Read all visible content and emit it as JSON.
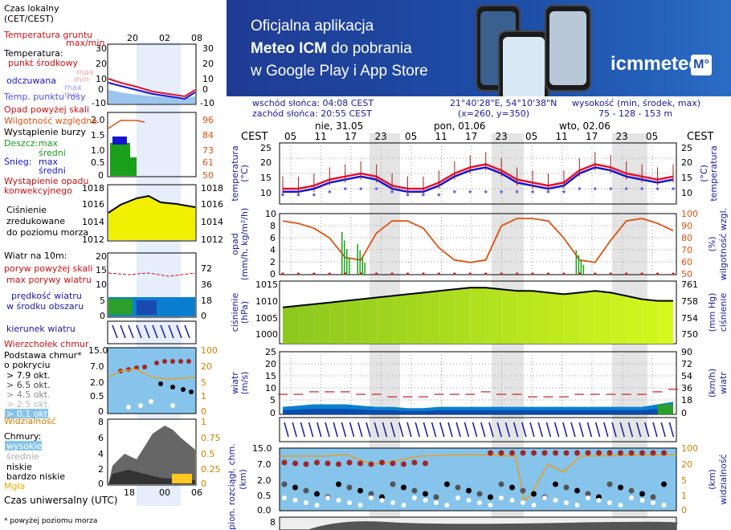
{
  "banner": {
    "line1": "Oficjalna aplikacja",
    "line2_bold": "Meteo ICM",
    "line2_rest": " do pobrania",
    "line3": "w Google Play i App Store",
    "logo_text": "icmmeteo",
    "logo_box": "M°"
  },
  "info": {
    "sunrise": "wschód słońca: 04:08 CEST",
    "sunset": "zachód słońca: 20:55 CEST",
    "coords": "21°40'28\"E, 54°10'38\"N",
    "grid": "(x=260, y=350)",
    "elev_label": "wysokość (min, środek, max)",
    "elev_values": "75 - 128 - 153 m"
  },
  "legend": {
    "tz_top": "Czas lokalny",
    "tz_top2": "(CET/CEST)",
    "top_ticks": [
      "20",
      "02",
      "08"
    ],
    "soil": "Temperatura gruntu",
    "soil2": "max/min",
    "temp": "Temperatura:",
    "temp_mid": "punkt środkowy",
    "temp_max": "max",
    "temp_min": "min",
    "feels": "odczuwana",
    "feels_max": "max",
    "feels_min": "min",
    "dew": "Temp. punktu rosy",
    "temp_ticks": [
      "30",
      "20",
      "10",
      "0",
      "-10"
    ],
    "precip_over": "Opad powyżej skali",
    "humidity": "Wilgotność względna",
    "storm": "Wystąpienie burzy",
    "rain": "Deszcz:",
    "rain_max": "max",
    "rain_mean": "średni",
    "snow": "Śnieg:",
    "snow_max": "max",
    "snow_mean": "średni",
    "conv": "Wystąpienie opadu",
    "conv2": "konwekcyjnego",
    "precip_ticks_l": [
      "2.0",
      "1.5",
      "1.0",
      "0.5",
      "0"
    ],
    "precip_ticks_r": [
      "96",
      "84",
      "73",
      "61",
      "50"
    ],
    "press_ticks": [
      "1018",
      "1016",
      "1014",
      "1012"
    ],
    "pressure": "Ciśnienie",
    "pressure2": "zredukowane",
    "pressure3": "do poziomu morza",
    "wind": "Wiatr na 10m:",
    "gust_over": "poryw powyżej skali",
    "gust_max": "max porywy wiatru",
    "wind_mean": "prędkość wiatru",
    "wind_mean2": "w środku obszaru",
    "wind_ticks_l": [
      "20",
      "15",
      "10",
      "5",
      "0"
    ],
    "wind_ticks_r": [
      "72",
      "54",
      "36",
      "18",
      "0"
    ],
    "wind_dir": "kierunek wiatru",
    "cloud_top": "Wierzchołek chmur",
    "cloud_base": "Podstawa chmur*",
    "cloud_base2": "o pokryciu",
    "okt1": "> 7.9 okt.",
    "okt2": "> 6.5 okt.",
    "okt3": "> 4.5 okt.",
    "okt4": "> 2.5 okt.",
    "okt5": "> 0.1 okt.",
    "visibility": "Widzialność",
    "cb_ticks_l": [
      "15.0",
      "7.0",
      "2.0",
      "0.5",
      "0"
    ],
    "cb_ticks_r": [
      "100",
      "20",
      "5",
      "1",
      "0"
    ],
    "clouds": "Chmury:",
    "c_high": "wysokie",
    "c_mid": "średnie",
    "c_low": "niskie",
    "c_vlow": "bardzo niskie",
    "fog": "Mgła",
    "cl_ticks_l": [
      "8",
      "6",
      "4",
      "2",
      "0"
    ],
    "cl_ticks_r": [
      "1",
      "0.75",
      "0.5",
      "0.25",
      "0"
    ],
    "bottom_ticks": [
      "18",
      "00",
      "06"
    ],
    "utc": "Czas uniwersalny (UTC)",
    "footnote": "* powyżej poziomu morza"
  },
  "colors": {
    "temp": "#e8102a",
    "feels": "#1515d0",
    "dew": "#6a6ae8",
    "humidity": "#e05010",
    "rain": "#1aa01a",
    "pressure_fill": "#c8f020",
    "wind_fill": "#0a7fd0",
    "wind_dark": "#0a1a8a",
    "wind_green": "#2aa02a",
    "cloudbase_bg": "#86c4ec",
    "label_red": "#cc1010",
    "label_blue": "#1a1aa0",
    "label_green": "#1a9a1a",
    "label_orange": "#d08000"
  },
  "main": {
    "cest_left": "CEST",
    "cest_right": "CEST",
    "days": [
      "nie, 31.05",
      "pon, 01.06",
      "wto, 02.06"
    ],
    "hours": [
      "05",
      "11",
      "17",
      "23",
      "05",
      "11",
      "17",
      "23",
      "05",
      "11",
      "17",
      "23",
      "05"
    ],
    "panels": {
      "temp": {
        "left": "temperatura",
        "left2": "(°C)",
        "right": "temperatura",
        "right2": "(°C)",
        "ticks": [
          "25",
          "20",
          "15",
          "10"
        ]
      },
      "precip": {
        "left": "opad",
        "left2": "(mm/h, kg/m²/h)",
        "right": "wilgotność wzgl.",
        "right2": "(%)",
        "ticks_l": [
          "10",
          "8",
          "6",
          "4",
          "2",
          "0"
        ],
        "ticks_r": [
          "100",
          "90",
          "80",
          "70",
          "60",
          "50"
        ]
      },
      "pressure": {
        "left": "ciśnienie",
        "left2": "(hPa)",
        "right": "ciśnienie",
        "right2": "(mm Hg)",
        "ticks_l": [
          "1015",
          "1010",
          "1005",
          "1000"
        ],
        "ticks_r": [
          "761",
          "758",
          "754",
          "750"
        ]
      },
      "wind": {
        "left": "wiatr",
        "left2": "(m/s)",
        "right": "wiatr",
        "right2": "(km/h)",
        "ticks_l": [
          "25",
          "20",
          "15",
          "10",
          "5",
          "0"
        ],
        "ticks_r": [
          "90",
          "72",
          "54",
          "36",
          "18",
          "0"
        ]
      },
      "cloudbase": {
        "left": "pion. rozciągł. chm.",
        "left2": "(km)",
        "right": "widzialność",
        "right2": "(km)",
        "ticks_l": [
          "15.0",
          "7.0",
          "2.0",
          "0.5",
          "0.0"
        ],
        "ticks_r": [
          "100",
          "20",
          "5",
          "1",
          "0"
        ]
      },
      "clouds": {
        "ticks_l": [
          "8"
        ]
      }
    }
  },
  "chart_data": {
    "type": "line",
    "x": [
      "31.05 03",
      "31.05 06",
      "31.05 09",
      "31.05 12",
      "31.05 15",
      "31.05 18",
      "31.05 21",
      "01.06 00",
      "01.06 03",
      "01.06 06",
      "01.06 09",
      "01.06 12",
      "01.06 15",
      "01.06 18",
      "01.06 21",
      "02.06 00",
      "02.06 03",
      "02.06 06",
      "02.06 09",
      "02.06 12",
      "02.06 15",
      "02.06 18",
      "02.06 21",
      "03.06 00",
      "03.06 03",
      "03.06 06"
    ],
    "series": [
      {
        "name": "temperatura",
        "values": [
          12,
          12,
          13,
          15,
          16,
          17,
          16,
          13,
          12,
          12,
          14,
          17,
          19,
          20,
          18,
          15,
          14,
          13,
          14,
          18,
          20,
          19,
          17,
          16,
          15,
          16
        ]
      },
      {
        "name": "odczuwana",
        "values": [
          11,
          11,
          12,
          14,
          15,
          16,
          15,
          12,
          11,
          11,
          13,
          16,
          18,
          19,
          17,
          14,
          13,
          12,
          13,
          17,
          19,
          18,
          16,
          15,
          14,
          15
        ]
      },
      {
        "name": "punkt rosy",
        "values": [
          10,
          10,
          10,
          11,
          12,
          12,
          12,
          11,
          10,
          10,
          10,
          11,
          11,
          11,
          11,
          11,
          11,
          11,
          11,
          12,
          12,
          12,
          12,
          12,
          12,
          12
        ]
      },
      {
        "name": "wilgotność",
        "values": [
          94,
          92,
          88,
          80,
          64,
          62,
          84,
          94,
          94,
          88,
          72,
          62,
          60,
          62,
          90,
          96,
          96,
          94,
          80,
          62,
          60,
          78,
          94,
          96,
          92,
          86
        ]
      },
      {
        "name": "opad",
        "values": [
          0,
          0,
          0,
          0,
          7,
          5,
          0,
          0,
          0,
          0,
          0,
          0,
          0,
          0,
          0,
          0,
          0,
          0,
          0,
          4,
          0,
          0,
          0,
          0,
          0,
          0
        ]
      },
      {
        "name": "ciśnienie",
        "values": [
          1009,
          1009.5,
          1010,
          1010.5,
          1011,
          1011.5,
          1012,
          1012.5,
          1013,
          1013.5,
          1014,
          1014.5,
          1015,
          1015,
          1014.5,
          1014,
          1014,
          1013.5,
          1013,
          1013.5,
          1014,
          1013.5,
          1012.5,
          1011.5,
          1011,
          1011
        ]
      },
      {
        "name": "wiatr",
        "values": [
          3,
          3.5,
          4,
          4,
          4,
          3.5,
          3,
          3,
          2.5,
          2.5,
          3,
          3,
          3,
          3,
          3,
          3,
          3,
          3,
          3,
          3,
          3,
          3,
          3,
          3,
          4,
          5
        ]
      },
      {
        "name": "porywy",
        "values": [
          8,
          8,
          9,
          9,
          9,
          8,
          8,
          7,
          7,
          7,
          8,
          8,
          8,
          9,
          8,
          8,
          7,
          7,
          7,
          8,
          8,
          8,
          8,
          8,
          9,
          10
        ]
      }
    ],
    "xlabel": "",
    "ylabel": "temperatura (°C)",
    "ylim": [
      7,
      27
    ],
    "grid": true
  }
}
